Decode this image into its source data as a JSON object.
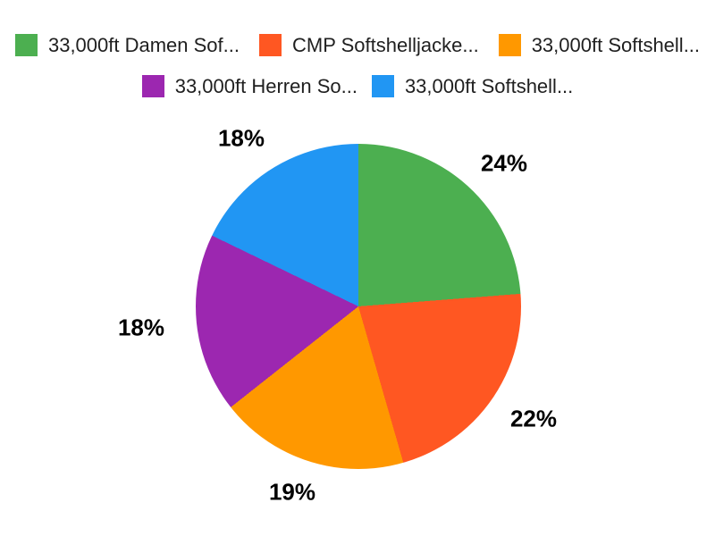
{
  "chart_data": {
    "type": "pie",
    "title": "",
    "legend_position": "top",
    "start_angle_deg": 0,
    "direction": "clockwise",
    "categories": [
      "33,000ft Damen Sof...",
      "CMP Softshelljacke...",
      "33,000ft Softshell...",
      "33,000ft Herren So...",
      "33,000ft Softshell..."
    ],
    "values": [
      24,
      22,
      19,
      18,
      18
    ],
    "unit": "%",
    "slice_labels": [
      "24%",
      "22%",
      "19%",
      "18%",
      "18%"
    ],
    "colors": [
      "#4caf50",
      "#ff5722",
      "#ff9800",
      "#9c27b0",
      "#2196f3"
    ],
    "background_color": "#ffffff",
    "label_color": "#000000",
    "legend_text_color": "#1f1f1f"
  },
  "legend": {
    "items": [
      {
        "label": "33,000ft Damen Sof...",
        "color": "#4caf50"
      },
      {
        "label": "CMP Softshelljacke...",
        "color": "#ff5722"
      },
      {
        "label": "33,000ft Softshell...",
        "color": "#ff9800"
      },
      {
        "label": "33,000ft Herren So...",
        "color": "#9c27b0"
      },
      {
        "label": "33,000ft Softshell...",
        "color": "#2196f3"
      }
    ]
  }
}
